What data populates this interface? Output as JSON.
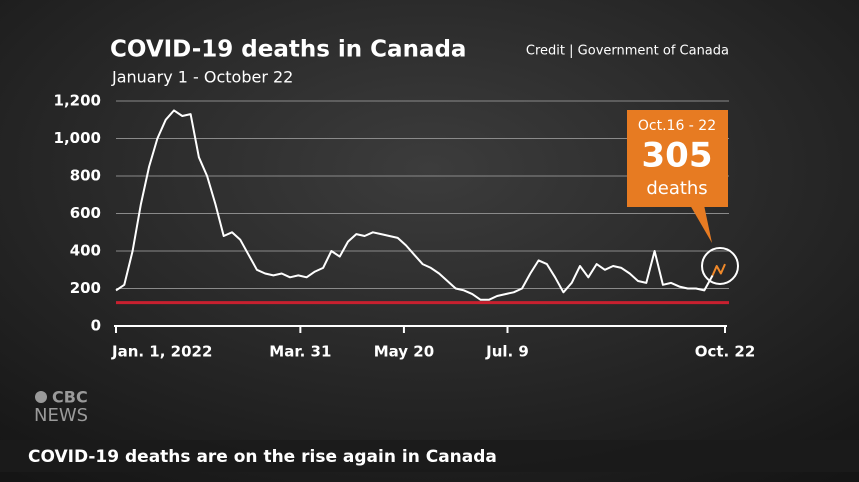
{
  "chart_data": {
    "type": "line",
    "title": "COVID-19 deaths in Canada",
    "subtitle": "January 1 - October 22",
    "credit": "Credit | Government of Canada",
    "xlim": [
      0,
      294
    ],
    "xticks": [
      {
        "value": 0,
        "label": "Jan. 1, 2022"
      },
      {
        "value": 89,
        "label": "Mar. 31"
      },
      {
        "value": 139,
        "label": "May 20"
      },
      {
        "value": 189,
        "label": "Jul. 9"
      },
      {
        "value": 294,
        "label": "Oct. 22"
      }
    ],
    "ylim": [
      0,
      1200
    ],
    "yticks": [
      0,
      200,
      400,
      600,
      800,
      {
        "value": 1000,
        "label": "1,000"
      },
      {
        "value": 1200,
        "label": "1,200"
      }
    ],
    "grid": true,
    "reference_line": {
      "value": 125,
      "color": "#c8202f"
    },
    "series": [
      {
        "color": "#ffffff",
        "x": [
          0,
          4,
          8,
          12,
          16,
          20,
          24,
          28,
          32,
          36,
          40,
          44,
          48,
          52,
          56,
          60,
          64,
          68,
          72,
          76,
          80,
          84,
          88,
          92,
          96,
          100,
          104,
          108,
          112,
          116,
          120,
          124,
          128,
          132,
          136,
          140,
          144,
          148,
          152,
          156,
          160,
          164,
          168,
          172,
          176,
          180,
          184,
          188,
          192,
          196,
          200,
          204,
          208,
          212,
          216,
          220,
          224,
          228,
          232,
          236,
          240,
          244,
          248,
          252,
          256,
          260,
          264,
          268,
          272,
          276,
          280,
          284,
          288
        ],
        "values": [
          190,
          220,
          400,
          650,
          850,
          1000,
          1100,
          1150,
          1120,
          1130,
          900,
          800,
          650,
          480,
          500,
          460,
          380,
          300,
          280,
          270,
          280,
          260,
          270,
          260,
          290,
          310,
          400,
          370,
          450,
          490,
          480,
          500,
          490,
          480,
          470,
          430,
          380,
          330,
          310,
          280,
          240,
          200,
          190,
          170,
          140,
          140,
          160,
          170,
          180,
          200,
          280,
          350,
          330,
          260,
          180,
          230,
          320,
          260,
          330,
          300,
          320,
          310,
          280,
          240,
          230,
          400,
          220,
          230,
          210,
          200,
          200,
          190,
          270
        ]
      },
      {
        "color": "#f0892a",
        "x": [
          288,
          290,
          292,
          294
        ],
        "values": [
          270,
          320,
          280,
          330
        ]
      }
    ],
    "annotation": {
      "period": "Oct.16 - 22",
      "value": 305,
      "unit": "deaths",
      "color": "#e77b22"
    }
  },
  "caption": "COVID-19 deaths are on the rise again in Canada",
  "logo": {
    "top": "CBC",
    "bottom": "NEWS"
  }
}
